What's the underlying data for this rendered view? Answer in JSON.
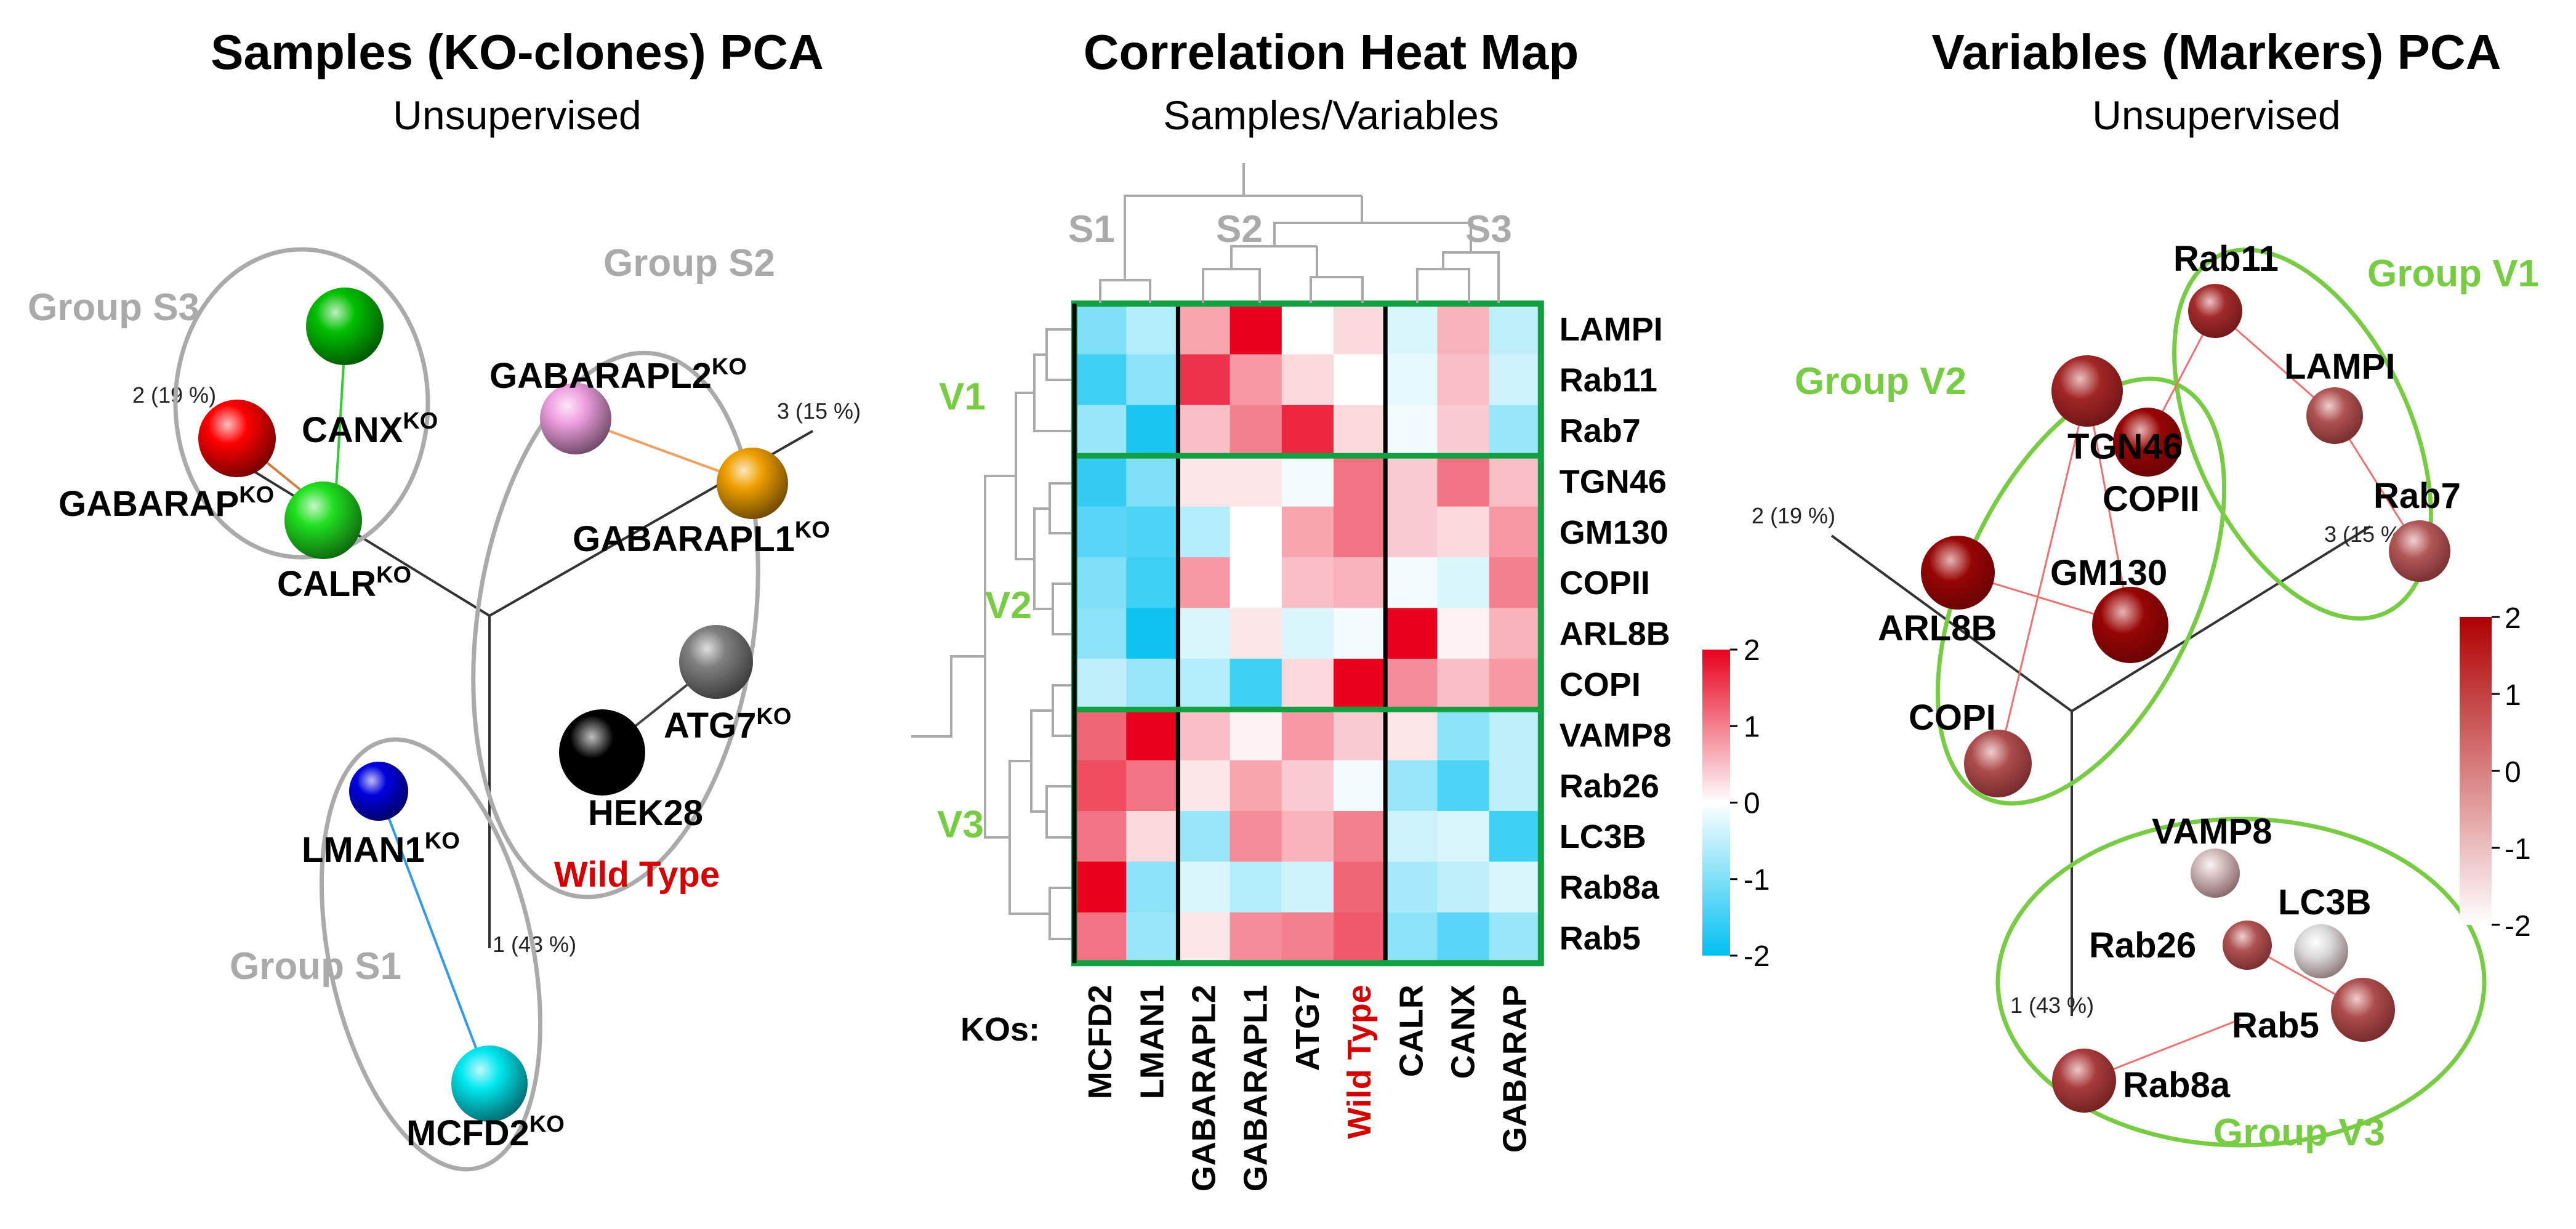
{
  "panels": {
    "left": {
      "title": "Samples (KO-clones) PCA",
      "subtitle": "Unsupervised"
    },
    "middle": {
      "title": "Correlation Heat Map",
      "subtitle": "Samples/Variables"
    },
    "right": {
      "title": "Variables (Markers) PCA",
      "subtitle": "Unsupervised"
    }
  },
  "chart_data": [
    {
      "type": "scatter",
      "title": "Samples (KO-clones) PCA",
      "subtitle": "Unsupervised",
      "axes": [
        {
          "id": "1",
          "label": "1 (43 %)"
        },
        {
          "id": "2",
          "label": "2 (19 %)"
        },
        {
          "id": "3",
          "label": "3 (15 %)"
        }
      ],
      "groups": [
        {
          "name": "Group S3",
          "members": [
            "CANX",
            "GABARAP",
            "CALR"
          ]
        },
        {
          "name": "Group S2",
          "members": [
            "GABARAPL2",
            "GABARAPL1",
            "ATG7",
            "HEK28"
          ]
        },
        {
          "name": "Group S1",
          "members": [
            "LMAN1",
            "MCFD2"
          ]
        }
      ],
      "points": [
        {
          "name": "CANX",
          "sup": "KO",
          "color": "#00c000"
        },
        {
          "name": "GABARAP",
          "sup": "KO",
          "color": "#ff0000"
        },
        {
          "name": "CALR",
          "sup": "KO",
          "color": "#20e020"
        },
        {
          "name": "GABARAPL2",
          "sup": "KO",
          "color": "#f0a0e0"
        },
        {
          "name": "GABARAPL1",
          "sup": "KO",
          "color": "#f0a000"
        },
        {
          "name": "ATG7",
          "sup": "KO",
          "color": "#808080"
        },
        {
          "name": "HEK28",
          "sup": "",
          "color": "#000000"
        },
        {
          "name": "LMAN1",
          "sup": "KO",
          "color": "#0000e0"
        },
        {
          "name": "MCFD2",
          "sup": "KO",
          "color": "#00e8f0"
        }
      ],
      "annotation": "Wild Type"
    },
    {
      "type": "heatmap",
      "title": "Correlation Heat Map",
      "subtitle": "Samples/Variables",
      "rows": [
        "LAMPI",
        "Rab11",
        "Rab7",
        "TGN46",
        "GM130",
        "COPII",
        "ARL8B",
        "COPI",
        "VAMP8",
        "Rab26",
        "LC3B",
        "Rab8a",
        "Rab5"
      ],
      "columns": [
        "MCFD2",
        "LMAN1",
        "GABARAPL2",
        "GABARAPL1",
        "ATG7",
        "Wild Type",
        "CALR",
        "CANX",
        "GABARAP"
      ],
      "columns_label": "KOs:",
      "sample_groups": [
        "S1",
        "S2",
        "S3"
      ],
      "variable_groups": [
        "V1",
        "V2",
        "V3"
      ],
      "values": [
        [
          -1.0,
          -0.6,
          0.7,
          2.0,
          0.0,
          0.3,
          -0.3,
          0.6,
          -0.5
        ],
        [
          -1.5,
          -0.9,
          1.6,
          0.8,
          0.3,
          0.0,
          -0.2,
          0.5,
          -0.4
        ],
        [
          -0.8,
          -1.8,
          0.5,
          1.0,
          1.7,
          0.3,
          -0.1,
          0.4,
          -0.8
        ],
        [
          -1.6,
          -1.0,
          0.2,
          0.2,
          -0.1,
          1.1,
          0.4,
          1.1,
          0.5
        ],
        [
          -1.3,
          -1.4,
          -0.6,
          0.0,
          0.7,
          1.1,
          0.4,
          0.3,
          0.8
        ],
        [
          -1.0,
          -1.5,
          0.8,
          0.0,
          0.5,
          0.6,
          -0.1,
          -0.3,
          1.0
        ],
        [
          -0.9,
          -1.9,
          -0.3,
          0.2,
          -0.3,
          -0.1,
          2.0,
          0.1,
          0.6
        ],
        [
          -0.5,
          -0.8,
          -0.6,
          -1.5,
          0.3,
          2.0,
          0.9,
          0.5,
          0.8
        ],
        [
          1.2,
          2.0,
          0.5,
          0.1,
          0.8,
          0.4,
          0.2,
          -0.9,
          -0.5
        ],
        [
          1.4,
          1.1,
          0.2,
          0.7,
          0.4,
          -0.1,
          -0.8,
          -1.4,
          -0.5
        ],
        [
          1.1,
          0.3,
          -0.8,
          0.9,
          0.6,
          1.0,
          -0.4,
          -0.3,
          -1.5
        ],
        [
          2.0,
          -0.9,
          -0.3,
          -0.6,
          -0.4,
          1.2,
          -0.7,
          -0.5,
          -0.3
        ],
        [
          1.1,
          -0.8,
          0.2,
          0.9,
          1.0,
          1.3,
          -0.9,
          -1.3,
          -0.8
        ]
      ],
      "colorbar": {
        "range": [
          -2,
          2
        ],
        "ticks": [
          "2",
          "1",
          "0",
          "-1",
          "-2"
        ],
        "colors": {
          "high": "#e8001c",
          "mid": "#ffffff",
          "low": "#00c0f0"
        }
      }
    },
    {
      "type": "scatter",
      "title": "Variables (Markers) PCA",
      "subtitle": "Unsupervised",
      "axes": [
        {
          "id": "1",
          "label": "1 (43 %)"
        },
        {
          "id": "2",
          "label": "2 (19 %)"
        },
        {
          "id": "3",
          "label": "3 (15 %)"
        }
      ],
      "groups": [
        {
          "name": "Group V1",
          "members": [
            "Rab11",
            "LAMPI",
            "Rab7"
          ]
        },
        {
          "name": "Group V2",
          "members": [
            "TGN46",
            "COPII",
            "GM130",
            "ARL8B",
            "COPI"
          ]
        },
        {
          "name": "Group V3",
          "members": [
            "VAMP8",
            "LC3B",
            "Rab26",
            "Rab5",
            "Rab8a"
          ]
        }
      ],
      "points": [
        {
          "name": "Rab11",
          "value": 1.2
        },
        {
          "name": "LAMPI",
          "value": 0.5
        },
        {
          "name": "Rab7",
          "value": 0.4
        },
        {
          "name": "TGN46",
          "value": 1.3
        },
        {
          "name": "COPII",
          "value": 1.9
        },
        {
          "name": "GM130",
          "value": 1.9
        },
        {
          "name": "ARL8B",
          "value": 1.9
        },
        {
          "name": "COPI",
          "value": 0.6
        },
        {
          "name": "VAMP8",
          "value": -1.4
        },
        {
          "name": "LC3B",
          "value": -2.0
        },
        {
          "name": "Rab26",
          "value": 0.5
        },
        {
          "name": "Rab5",
          "value": 0.6
        },
        {
          "name": "Rab8a",
          "value": 0.9
        }
      ],
      "colorbar": {
        "range": [
          -2,
          2
        ],
        "ticks": [
          "2",
          "1",
          "0",
          "-1",
          "-2"
        ],
        "colors": {
          "high": "#b00000",
          "low": "#ffffff"
        }
      }
    }
  ]
}
